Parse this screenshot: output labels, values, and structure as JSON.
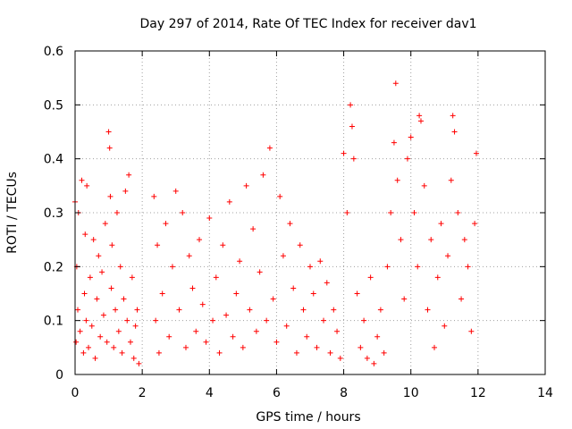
{
  "chart_data": {
    "type": "scatter",
    "title": "Day 297 of 2014, Rate Of TEC Index for receiver dav1",
    "xlabel": "GPS time / hours",
    "ylabel": "ROTI / TECUs",
    "xlim": [
      0,
      14
    ],
    "ylim": [
      0,
      0.6
    ],
    "xticks": [
      "0",
      "2",
      "4",
      "6",
      "8",
      "10",
      "12",
      "14"
    ],
    "yticks": [
      "0",
      "0.1",
      "0.2",
      "0.3",
      "0.4",
      "0.5",
      "0.6"
    ],
    "grid": true,
    "marker": "+",
    "color": "#ff0000",
    "series": [
      {
        "x": [
          0.0,
          0.03,
          0.05,
          0.08,
          0.1,
          0.15,
          0.2,
          0.25,
          0.28,
          0.3,
          0.33,
          0.35,
          0.4,
          0.45,
          0.5,
          0.55,
          0.6,
          0.65,
          0.7,
          0.75,
          0.8,
          0.85,
          0.9,
          0.95,
          1.0,
          1.03,
          1.05,
          1.08,
          1.1,
          1.15,
          1.2,
          1.25,
          1.3,
          1.35,
          1.4,
          1.45,
          1.5,
          1.55,
          1.6,
          1.65,
          1.7,
          1.75,
          1.8,
          1.85,
          1.9,
          2.35,
          2.4,
          2.45,
          2.5,
          2.6,
          2.7,
          2.8,
          2.9,
          3.0,
          3.1,
          3.2,
          3.3,
          3.4,
          3.5,
          3.6,
          3.7,
          3.8,
          3.9,
          4.0,
          4.1,
          4.2,
          4.3,
          4.4,
          4.5,
          4.6,
          4.7,
          4.8,
          4.9,
          5.0,
          5.1,
          5.2,
          5.3,
          5.4,
          5.5,
          5.6,
          5.7,
          5.8,
          5.9,
          6.0,
          6.1,
          6.2,
          6.3,
          6.4,
          6.5,
          6.6,
          6.7,
          6.8,
          6.9,
          7.0,
          7.1,
          7.2,
          7.3,
          7.4,
          7.5,
          7.6,
          7.7,
          7.8,
          7.9,
          8.0,
          8.1,
          8.2,
          8.25,
          8.3,
          8.4,
          8.5,
          8.6,
          8.7,
          8.8,
          8.9,
          9.0,
          9.1,
          9.2,
          9.3,
          9.4,
          9.5,
          9.55,
          9.6,
          9.7,
          9.8,
          9.9,
          10.0,
          10.1,
          10.2,
          10.25,
          10.3,
          10.4,
          10.5,
          10.6,
          10.7,
          10.8,
          10.9,
          11.0,
          11.1,
          11.2,
          11.25,
          11.3,
          11.4,
          11.5,
          11.6,
          11.7,
          11.8,
          11.9,
          11.95
        ],
        "y": [
          0.32,
          0.06,
          0.2,
          0.12,
          0.3,
          0.08,
          0.36,
          0.04,
          0.15,
          0.26,
          0.1,
          0.35,
          0.05,
          0.18,
          0.09,
          0.25,
          0.03,
          0.14,
          0.22,
          0.07,
          0.19,
          0.11,
          0.28,
          0.06,
          0.45,
          0.42,
          0.33,
          0.16,
          0.24,
          0.05,
          0.12,
          0.3,
          0.08,
          0.2,
          0.04,
          0.14,
          0.34,
          0.1,
          0.37,
          0.06,
          0.18,
          0.03,
          0.09,
          0.12,
          0.02,
          0.33,
          0.1,
          0.24,
          0.04,
          0.15,
          0.28,
          0.07,
          0.2,
          0.34,
          0.12,
          0.3,
          0.05,
          0.22,
          0.16,
          0.08,
          0.25,
          0.13,
          0.06,
          0.29,
          0.1,
          0.18,
          0.04,
          0.24,
          0.11,
          0.32,
          0.07,
          0.15,
          0.21,
          0.05,
          0.35,
          0.12,
          0.27,
          0.08,
          0.19,
          0.37,
          0.1,
          0.42,
          0.14,
          0.06,
          0.33,
          0.22,
          0.09,
          0.28,
          0.16,
          0.04,
          0.24,
          0.12,
          0.07,
          0.2,
          0.15,
          0.05,
          0.21,
          0.1,
          0.17,
          0.04,
          0.12,
          0.08,
          0.03,
          0.41,
          0.3,
          0.5,
          0.46,
          0.4,
          0.15,
          0.05,
          0.1,
          0.03,
          0.18,
          0.02,
          0.07,
          0.12,
          0.04,
          0.2,
          0.3,
          0.43,
          0.54,
          0.36,
          0.25,
          0.14,
          0.4,
          0.44,
          0.3,
          0.2,
          0.48,
          0.47,
          0.35,
          0.12,
          0.25,
          0.05,
          0.18,
          0.28,
          0.09,
          0.22,
          0.36,
          0.48,
          0.45,
          0.3,
          0.14,
          0.25,
          0.2,
          0.08,
          0.28,
          0.41
        ]
      }
    ]
  }
}
